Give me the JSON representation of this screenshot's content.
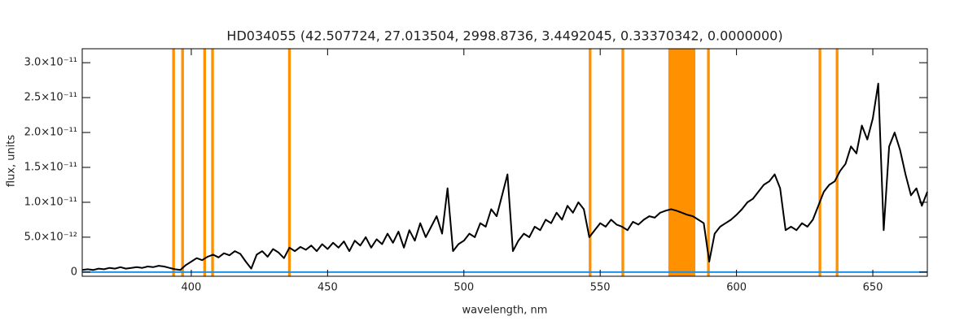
{
  "chart_data": {
    "type": "line",
    "title": "HD034055    (42.507724, 27.013504, 2998.8736, 3.4492045, 0.33370342, 0.0000000)",
    "x_label": "wavelength, nm",
    "y_label": "flux, units",
    "xlim": [
      360,
      670
    ],
    "ylim": [
      -6e-13,
      3.2e-11
    ],
    "xticks": [
      400,
      450,
      500,
      550,
      600,
      650
    ],
    "yticks": [
      0,
      {
        "value": 5e-12,
        "label": "5.0×10⁻¹²"
      },
      {
        "value": 1e-11,
        "label": "1.0×10⁻¹¹"
      },
      {
        "value": 1.5e-11,
        "label": "1.5×10⁻¹¹"
      },
      {
        "value": 2e-11,
        "label": "2.0×10⁻¹¹"
      },
      {
        "value": 2.5e-11,
        "label": "2.5×10⁻¹¹"
      },
      {
        "value": 3e-11,
        "label": "3.0×10⁻¹¹"
      }
    ],
    "masked_regions": [
      [
        393.0,
        394.0
      ],
      [
        396.3,
        397.3
      ],
      [
        404.4,
        405.4
      ],
      [
        407.3,
        408.3
      ],
      [
        435.5,
        436.5
      ],
      [
        545.8,
        546.8
      ],
      [
        557.8,
        558.8
      ],
      [
        575.0,
        584.9
      ],
      [
        589.2,
        590.2
      ],
      [
        630.1,
        631.1
      ],
      [
        636.4,
        637.4
      ]
    ],
    "masked_color": "#ff9000",
    "baseline": 0,
    "baseline_color": "#1e90e8",
    "color": "#000000",
    "x": [
      360,
      362,
      364,
      366,
      368,
      370,
      372,
      374,
      376,
      378,
      380,
      382,
      384,
      386,
      388,
      390,
      392,
      394,
      396,
      398,
      400,
      402,
      404,
      406,
      408,
      410,
      412,
      414,
      416,
      418,
      420,
      422,
      424,
      426,
      428,
      430,
      432,
      434,
      436,
      438,
      440,
      442,
      444,
      446,
      448,
      450,
      452,
      454,
      456,
      458,
      460,
      462,
      464,
      466,
      468,
      470,
      472,
      474,
      476,
      478,
      480,
      482,
      484,
      486,
      488,
      490,
      492,
      494,
      496,
      498,
      500,
      502,
      504,
      506,
      508,
      510,
      512,
      514,
      516,
      518,
      520,
      522,
      524,
      526,
      528,
      530,
      532,
      534,
      536,
      538,
      540,
      542,
      544,
      546,
      548,
      550,
      552,
      554,
      556,
      558,
      560,
      562,
      564,
      566,
      568,
      570,
      572,
      574,
      576,
      578,
      580,
      582,
      584,
      586,
      588,
      590,
      592,
      594,
      596,
      598,
      600,
      602,
      604,
      606,
      608,
      610,
      612,
      614,
      616,
      618,
      620,
      622,
      624,
      626,
      628,
      630,
      632,
      634,
      636,
      638,
      640,
      642,
      644,
      646,
      648,
      650,
      652,
      654,
      656,
      658,
      660,
      662,
      664,
      666,
      668,
      670
    ],
    "values": [
      3e-13,
      4e-13,
      3e-13,
      5e-13,
      4e-13,
      6e-13,
      5e-13,
      7e-13,
      5e-13,
      6e-13,
      7e-13,
      6e-13,
      8e-13,
      7e-13,
      9e-13,
      8e-13,
      6e-13,
      4e-13,
      3e-13,
      1e-12,
      1.5e-12,
      2e-12,
      1.7e-12,
      2.2e-12,
      2.5e-12,
      2.1e-12,
      2.7e-12,
      2.4e-12,
      3e-12,
      2.6e-12,
      1.5e-12,
      5e-13,
      2.5e-12,
      3e-12,
      2.2e-12,
      3.3e-12,
      2.8e-12,
      2e-12,
      3.5e-12,
      3e-12,
      3.6e-12,
      3.2e-12,
      3.8e-12,
      3e-12,
      4e-12,
      3.3e-12,
      4.2e-12,
      3.5e-12,
      4.4e-12,
      3e-12,
      4.5e-12,
      3.8e-12,
      5e-12,
      3.5e-12,
      4.7e-12,
      4e-12,
      5.5e-12,
      4.2e-12,
      5.8e-12,
      3.5e-12,
      6e-12,
      4.5e-12,
      7e-12,
      5e-12,
      6.5e-12,
      8e-12,
      5.5e-12,
      1.2e-11,
      3e-12,
      4e-12,
      4.5e-12,
      5.5e-12,
      5e-12,
      7e-12,
      6.5e-12,
      9e-12,
      8e-12,
      1.1e-11,
      1.4e-11,
      3e-12,
      4.5e-12,
      5.5e-12,
      5e-12,
      6.5e-12,
      6e-12,
      7.5e-12,
      7e-12,
      8.5e-12,
      7.5e-12,
      9.5e-12,
      8.5e-12,
      1e-11,
      9e-12,
      5e-12,
      6e-12,
      7e-12,
      6.5e-12,
      7.5e-12,
      6.8e-12,
      6.5e-12,
      6e-12,
      7.2e-12,
      6.8e-12,
      7.5e-12,
      8e-12,
      7.8e-12,
      8.5e-12,
      8.8e-12,
      9e-12,
      8.8e-12,
      8.5e-12,
      8.2e-12,
      8e-12,
      7.5e-12,
      7e-12,
      1.5e-12,
      5.5e-12,
      6.5e-12,
      7e-12,
      7.5e-12,
      8.2e-12,
      9e-12,
      1e-11,
      1.05e-11,
      1.15e-11,
      1.25e-11,
      1.3e-11,
      1.4e-11,
      1.2e-11,
      6e-12,
      6.5e-12,
      6e-12,
      7e-12,
      6.5e-12,
      7.5e-12,
      9.5e-12,
      1.15e-11,
      1.25e-11,
      1.3e-11,
      1.45e-11,
      1.55e-11,
      1.8e-11,
      1.7e-11,
      2.1e-11,
      1.9e-11,
      2.2e-11,
      2.7e-11,
      6e-12,
      1.8e-11,
      2e-11,
      1.75e-11,
      1.4e-11,
      1.1e-11,
      1.2e-11,
      9.5e-12,
      1.15e-11
    ]
  }
}
